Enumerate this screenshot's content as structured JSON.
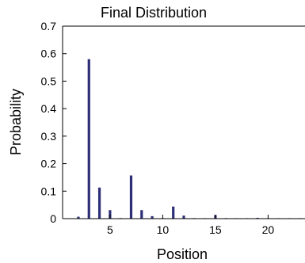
{
  "chart_data": {
    "type": "bar",
    "title": "Final Distribution",
    "xlabel": "Position",
    "ylabel": "Probability",
    "xlim": [
      0.5,
      23.5
    ],
    "ylim": [
      0,
      0.7
    ],
    "xticks": [
      5,
      10,
      15,
      20
    ],
    "yticks": [
      0,
      0.1,
      0.2,
      0.3,
      0.4,
      0.5,
      0.6,
      0.7
    ],
    "grid": false,
    "bar_color": "#2e2e78",
    "x": [
      2,
      3,
      4,
      5,
      6,
      7,
      8,
      9,
      10,
      11,
      12,
      13,
      14,
      15,
      16,
      17,
      18,
      19,
      20,
      21,
      22,
      23
    ],
    "values": [
      0.007,
      0.58,
      0.113,
      0.031,
      0.002,
      0.157,
      0.031,
      0.009,
      0.002,
      0.044,
      0.011,
      0.002,
      0.001,
      0.013,
      0.002,
      0.001,
      0.0005,
      0.003,
      0.0005,
      0.0005,
      0.0005,
      0.0005
    ]
  }
}
